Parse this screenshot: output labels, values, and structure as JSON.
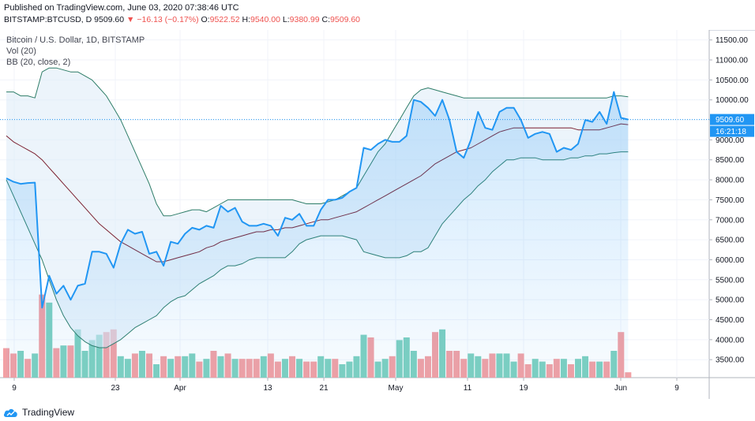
{
  "header": {
    "published": "Published on TradingView.com, June 03, 2020 07:38:46 UTC",
    "symbol": "BITSTAMP:BTCUSD, D",
    "last": "9509.60",
    "change": "▼ −16.13 (−0.17%)",
    "open_label": "O:",
    "open": "9522.52",
    "high_label": "H:",
    "high": "9540.00",
    "low_label": "L:",
    "low": "9380.99",
    "close_label": "C:",
    "close": "9509.60"
  },
  "legend": {
    "title": "Bitcoin / U.S. Dollar, 1D, BITSTAMP",
    "vol": "Vol (20)",
    "bb": "BB (20, close, 2)"
  },
  "price_tag": "9509.60",
  "countdown": "16:21:18",
  "brand": "TradingView",
  "colors": {
    "price_line": "#2196f3",
    "bb_band": "#2e7d68",
    "bb_basis": "#7b1f2f",
    "bb_fill": "#dcebf7",
    "vol_up": "#7ed0c0",
    "vol_down": "#f2a0a4",
    "tag": "#2196f3"
  },
  "chart_data": {
    "type": "line",
    "x_ticks": [
      "9",
      "23",
      "Apr",
      "13",
      "21",
      "May",
      "11",
      "19",
      "Jun",
      "9"
    ],
    "y_ticks": [
      3500,
      4000,
      4500,
      5000,
      5500,
      6000,
      6500,
      7000,
      7500,
      8000,
      8500,
      9000,
      9500,
      10000,
      10500,
      11000,
      11500
    ],
    "ylim": [
      3050,
      11750
    ],
    "series": [
      {
        "role": "price",
        "values": [
          8040,
          7950,
          7900,
          7920,
          7930,
          4800,
          5600,
          5150,
          5350,
          5000,
          5350,
          5400,
          6200,
          6200,
          6150,
          5800,
          6400,
          6750,
          6650,
          6700,
          6150,
          6200,
          5850,
          6450,
          6400,
          6650,
          6800,
          6750,
          6850,
          6800,
          7350,
          7200,
          7300,
          6950,
          6850,
          6850,
          6900,
          6850,
          6600,
          7050,
          7000,
          7150,
          6850,
          6850,
          7250,
          7500,
          7500,
          7550,
          7700,
          7800,
          8800,
          8750,
          8900,
          9000,
          8950,
          8950,
          9100,
          10000,
          9950,
          9800,
          9600,
          10000,
          9500,
          8700,
          8550,
          9000,
          9700,
          9300,
          9250,
          9700,
          9800,
          9800,
          9500,
          9050,
          9150,
          9200,
          9150,
          8700,
          8800,
          8750,
          8900,
          9500,
          9450,
          9700,
          9400,
          10200,
          9550,
          9509
        ]
      },
      {
        "role": "bb-upper",
        "values": [
          10200,
          10200,
          10100,
          10100,
          10050,
          10700,
          10800,
          10800,
          10750,
          10700,
          10700,
          10600,
          10500,
          10300,
          10100,
          9800,
          9500,
          9100,
          8700,
          8300,
          7900,
          7400,
          7100,
          7100,
          7150,
          7200,
          7250,
          7250,
          7200,
          7300,
          7400,
          7500,
          7500,
          7500,
          7500,
          7500,
          7500,
          7500,
          7500,
          7500,
          7500,
          7450,
          7400,
          7400,
          7400,
          7450,
          7500,
          7600,
          7700,
          7800,
          8100,
          8400,
          8700,
          8900,
          9200,
          9500,
          9800,
          10100,
          10250,
          10300,
          10250,
          10200,
          10150,
          10100,
          10050,
          10050,
          10050,
          10050,
          10050,
          10050,
          10050,
          10050,
          10050,
          10050,
          10050,
          10050,
          10050,
          10050,
          10050,
          10050,
          10050,
          10050,
          10050,
          10050,
          10050,
          10100,
          10100,
          10080
        ]
      },
      {
        "role": "bb-basis",
        "values": [
          9100,
          8950,
          8850,
          8750,
          8650,
          8500,
          8300,
          8100,
          7900,
          7700,
          7500,
          7300,
          7100,
          6900,
          6750,
          6600,
          6450,
          6350,
          6250,
          6150,
          6050,
          5950,
          5950,
          6000,
          6050,
          6100,
          6150,
          6200,
          6300,
          6350,
          6450,
          6500,
          6550,
          6600,
          6650,
          6700,
          6700,
          6750,
          6750,
          6800,
          6800,
          6850,
          6900,
          6950,
          7000,
          7000,
          7050,
          7100,
          7150,
          7200,
          7300,
          7400,
          7500,
          7600,
          7700,
          7800,
          7900,
          8000,
          8100,
          8250,
          8400,
          8500,
          8600,
          8700,
          8750,
          8800,
          8900,
          9000,
          9100,
          9200,
          9250,
          9300,
          9300,
          9300,
          9300,
          9300,
          9300,
          9300,
          9300,
          9300,
          9250,
          9250,
          9250,
          9250,
          9300,
          9350,
          9400,
          9380
        ]
      },
      {
        "role": "bb-lower",
        "values": [
          8000,
          7600,
          7200,
          6800,
          6400,
          6000,
          5500,
          5000,
          4600,
          4300,
          4100,
          3950,
          3850,
          3800,
          3800,
          3900,
          4000,
          4150,
          4300,
          4400,
          4500,
          4600,
          4800,
          4950,
          5050,
          5100,
          5250,
          5400,
          5500,
          5600,
          5750,
          5850,
          5850,
          5900,
          6000,
          6050,
          6050,
          6050,
          6050,
          6050,
          6200,
          6400,
          6500,
          6550,
          6600,
          6600,
          6600,
          6600,
          6550,
          6500,
          6200,
          6150,
          6100,
          6050,
          6050,
          6050,
          6100,
          6200,
          6200,
          6300,
          6600,
          6900,
          7100,
          7300,
          7500,
          7650,
          7850,
          8000,
          8200,
          8350,
          8500,
          8500,
          8550,
          8550,
          8550,
          8500,
          8500,
          8500,
          8500,
          8550,
          8550,
          8600,
          8600,
          8650,
          8650,
          8680,
          8700,
          8700
        ]
      }
    ],
    "volume": {
      "ylim": [
        0,
        2500
      ],
      "values": [
        550,
        450,
        500,
        350,
        450,
        1550,
        1400,
        550,
        600,
        600,
        900,
        500,
        700,
        800,
        850,
        900,
        400,
        350,
        450,
        500,
        450,
        250,
        400,
        350,
        400,
        400,
        450,
        300,
        350,
        500,
        400,
        450,
        350,
        350,
        350,
        350,
        400,
        450,
        300,
        350,
        400,
        350,
        300,
        300,
        400,
        350,
        350,
        250,
        300,
        400,
        800,
        750,
        300,
        350,
        400,
        700,
        750,
        500,
        350,
        400,
        850,
        900,
        500,
        500,
        350,
        450,
        400,
        350,
        450,
        450,
        450,
        300,
        450,
        250,
        350,
        300,
        250,
        350,
        350,
        250,
        350,
        400,
        300,
        300,
        300,
        500,
        850,
        100
      ],
      "up": [
        0,
        0,
        1,
        0,
        1,
        0,
        1,
        0,
        1,
        0,
        1,
        1,
        1,
        1,
        0,
        0,
        1,
        1,
        0,
        1,
        0,
        1,
        0,
        1,
        0,
        1,
        1,
        0,
        1,
        0,
        1,
        0,
        1,
        0,
        0,
        0,
        1,
        0,
        0,
        1,
        0,
        1,
        0,
        0,
        1,
        1,
        0,
        1,
        1,
        1,
        1,
        0,
        1,
        1,
        0,
        1,
        1,
        1,
        0,
        0,
        0,
        1,
        0,
        0,
        0,
        1,
        1,
        0,
        0,
        1,
        1,
        1,
        0,
        0,
        1,
        1,
        0,
        0,
        1,
        0,
        1,
        1,
        0,
        1,
        0,
        1,
        0,
        0
      ]
    }
  }
}
